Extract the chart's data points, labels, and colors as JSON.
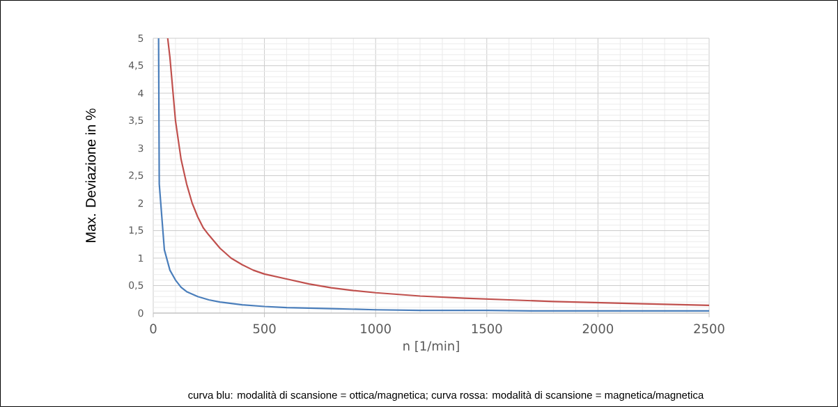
{
  "chart_data": {
    "type": "line",
    "xlabel": "n [1/min]",
    "ylabel": "Max. Deviazione in %",
    "annotations": [
      "curva blu: modalità di scansione = ottica/magnetica; curva rossa: modalità di scansione = magnetica/magnetica"
    ],
    "xlim": [
      0,
      2500
    ],
    "ylim": [
      0,
      5
    ],
    "xticks": [
      0,
      500,
      1000,
      1500,
      2000,
      2500
    ],
    "yticks": [
      0,
      {
        "value": 0.5,
        "label": "0,5"
      },
      1,
      {
        "value": 1.5,
        "label": "1,5"
      },
      2,
      {
        "value": 2.5,
        "label": "2,5"
      },
      3,
      {
        "value": 3.5,
        "label": "3,5"
      },
      4,
      {
        "value": 4.5,
        "label": "4,5"
      },
      5
    ],
    "grid": true,
    "line_style": "solid",
    "marker": "none",
    "series": [
      {
        "color": "#4a7ebb",
        "x": [
          24,
          27,
          50,
          75,
          100,
          125,
          150,
          200,
          250,
          300,
          400,
          500,
          600,
          700,
          800,
          1000,
          1200,
          1500,
          1700,
          2000,
          2500
        ],
        "values": [
          5,
          2.35,
          1.15,
          0.78,
          0.6,
          0.47,
          0.39,
          0.3,
          0.24,
          0.2,
          0.15,
          0.12,
          0.1,
          0.09,
          0.08,
          0.06,
          0.05,
          0.05,
          0.04,
          0.04,
          0.04
        ]
      },
      {
        "color": "#c0504d",
        "x": [
          65,
          75,
          100,
          125,
          150,
          175,
          200,
          225,
          250,
          300,
          350,
          400,
          450,
          500,
          600,
          700,
          800,
          900,
          1000,
          1200,
          1400,
          1600,
          1800,
          2000,
          2200,
          2400,
          2500
        ],
        "values": [
          5,
          4.65,
          3.5,
          2.8,
          2.35,
          2.0,
          1.75,
          1.55,
          1.42,
          1.18,
          1.0,
          0.88,
          0.78,
          0.71,
          0.62,
          0.53,
          0.46,
          0.41,
          0.37,
          0.31,
          0.27,
          0.24,
          0.21,
          0.19,
          0.17,
          0.15,
          0.14
        ]
      }
    ]
  }
}
